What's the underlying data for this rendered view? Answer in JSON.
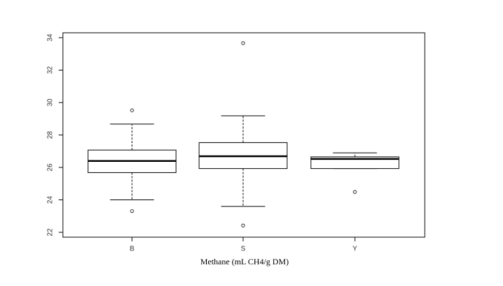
{
  "chart_data": {
    "type": "box",
    "x_label": "Methane (mL CH4/g DM)",
    "categories": [
      "B",
      "S",
      "Y"
    ],
    "boxes": [
      {
        "whisker_low": 24.0,
        "q1": 25.68,
        "median": 26.4,
        "q3": 27.07,
        "whisker_high": 28.67,
        "outliers": [
          29.52,
          23.31
        ]
      },
      {
        "whisker_low": 23.6,
        "q1": 25.93,
        "median": 26.69,
        "q3": 27.53,
        "whisker_high": 29.18,
        "outliers": [
          33.66,
          22.42
        ]
      },
      {
        "whisker_low": 25.93,
        "q1": 25.93,
        "median": 26.52,
        "q3": 26.65,
        "whisker_high": 26.9,
        "outliers": [
          24.49
        ]
      }
    ],
    "ylim": [
      21.7,
      34.3
    ],
    "yticks": [
      22,
      24,
      26,
      28,
      30,
      32,
      34
    ]
  }
}
